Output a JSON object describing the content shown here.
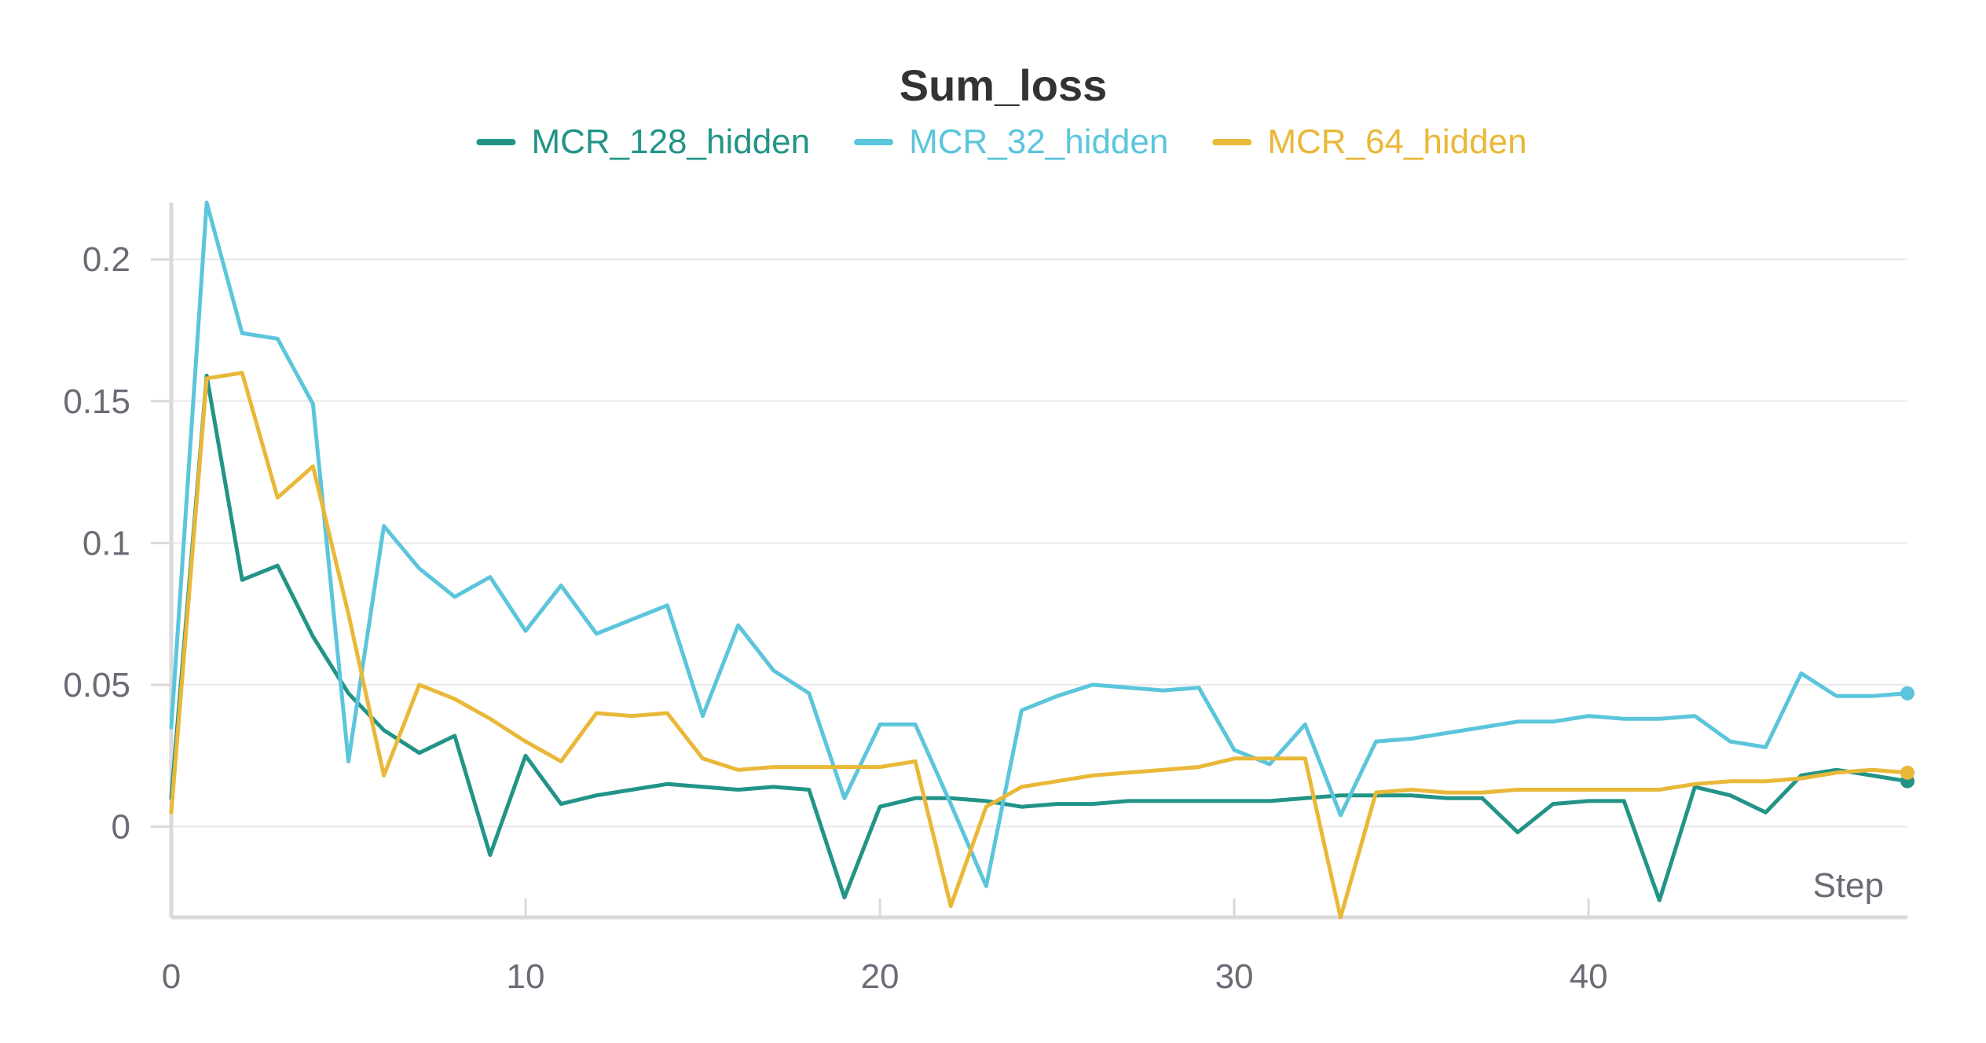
{
  "chart_data": {
    "type": "line",
    "title": "Sum_loss",
    "xlabel": "Step",
    "ylabel": "",
    "xlim": [
      0,
      49
    ],
    "ylim": [
      -0.032,
      0.22
    ],
    "xticks": [
      0,
      10,
      20,
      30,
      40
    ],
    "yticks": [
      0,
      0.05,
      0.1,
      0.15,
      0.2
    ],
    "ytick_labels": [
      "0",
      "0.05",
      "0.1",
      "0.15",
      "0.2"
    ],
    "xtick_labels": [
      "0",
      "10",
      "20",
      "30",
      "40"
    ],
    "grid": true,
    "legend": "top-center",
    "x": [
      0,
      1,
      2,
      3,
      4,
      5,
      6,
      7,
      8,
      9,
      10,
      11,
      12,
      13,
      14,
      15,
      16,
      17,
      18,
      19,
      20,
      21,
      22,
      23,
      24,
      25,
      26,
      27,
      28,
      29,
      30,
      31,
      32,
      33,
      34,
      35,
      36,
      37,
      38,
      39,
      40,
      41,
      42,
      43,
      44,
      45,
      46,
      47,
      48,
      49
    ],
    "series": [
      {
        "name": "MCR_128_hidden",
        "color": "#229487",
        "values": [
          0.01,
          0.159,
          0.087,
          0.092,
          0.067,
          0.047,
          0.034,
          0.026,
          0.032,
          -0.01,
          0.025,
          0.008,
          0.011,
          0.013,
          0.015,
          0.014,
          0.013,
          0.014,
          0.013,
          -0.025,
          0.007,
          0.01,
          0.01,
          0.009,
          0.007,
          0.008,
          0.008,
          0.009,
          0.009,
          0.009,
          0.009,
          0.009,
          0.01,
          0.011,
          0.011,
          0.011,
          0.01,
          0.01,
          -0.002,
          0.008,
          0.009,
          0.009,
          -0.026,
          0.014,
          0.011,
          0.005,
          0.018,
          0.02,
          0.018,
          0.016
        ]
      },
      {
        "name": "MCR_32_hidden",
        "color": "#5bc5db",
        "values": [
          0.035,
          0.22,
          0.174,
          0.172,
          0.149,
          0.023,
          0.106,
          0.091,
          0.081,
          0.088,
          0.069,
          0.085,
          0.068,
          0.073,
          0.078,
          0.039,
          0.071,
          0.055,
          0.047,
          0.01,
          0.036,
          0.036,
          0.008,
          -0.021,
          0.041,
          0.046,
          0.05,
          0.049,
          0.048,
          0.049,
          0.027,
          0.022,
          0.036,
          0.004,
          0.03,
          0.031,
          0.033,
          0.035,
          0.037,
          0.037,
          0.039,
          0.038,
          0.038,
          0.039,
          0.03,
          0.028,
          0.054,
          0.046,
          0.046,
          0.047
        ]
      },
      {
        "name": "MCR_64_hidden",
        "color": "#e9b838",
        "values": [
          0.005,
          0.158,
          0.16,
          0.116,
          0.127,
          0.075,
          0.018,
          0.05,
          0.045,
          0.038,
          0.03,
          0.023,
          0.04,
          0.039,
          0.04,
          0.024,
          0.02,
          0.021,
          0.021,
          0.021,
          0.021,
          0.023,
          -0.028,
          0.007,
          0.014,
          0.016,
          0.018,
          0.019,
          0.02,
          0.021,
          0.024,
          0.024,
          0.024,
          -0.032,
          0.012,
          0.013,
          0.012,
          0.012,
          0.013,
          0.013,
          0.013,
          0.013,
          0.013,
          0.015,
          0.016,
          0.016,
          0.017,
          0.019,
          0.02,
          0.019
        ]
      }
    ]
  }
}
